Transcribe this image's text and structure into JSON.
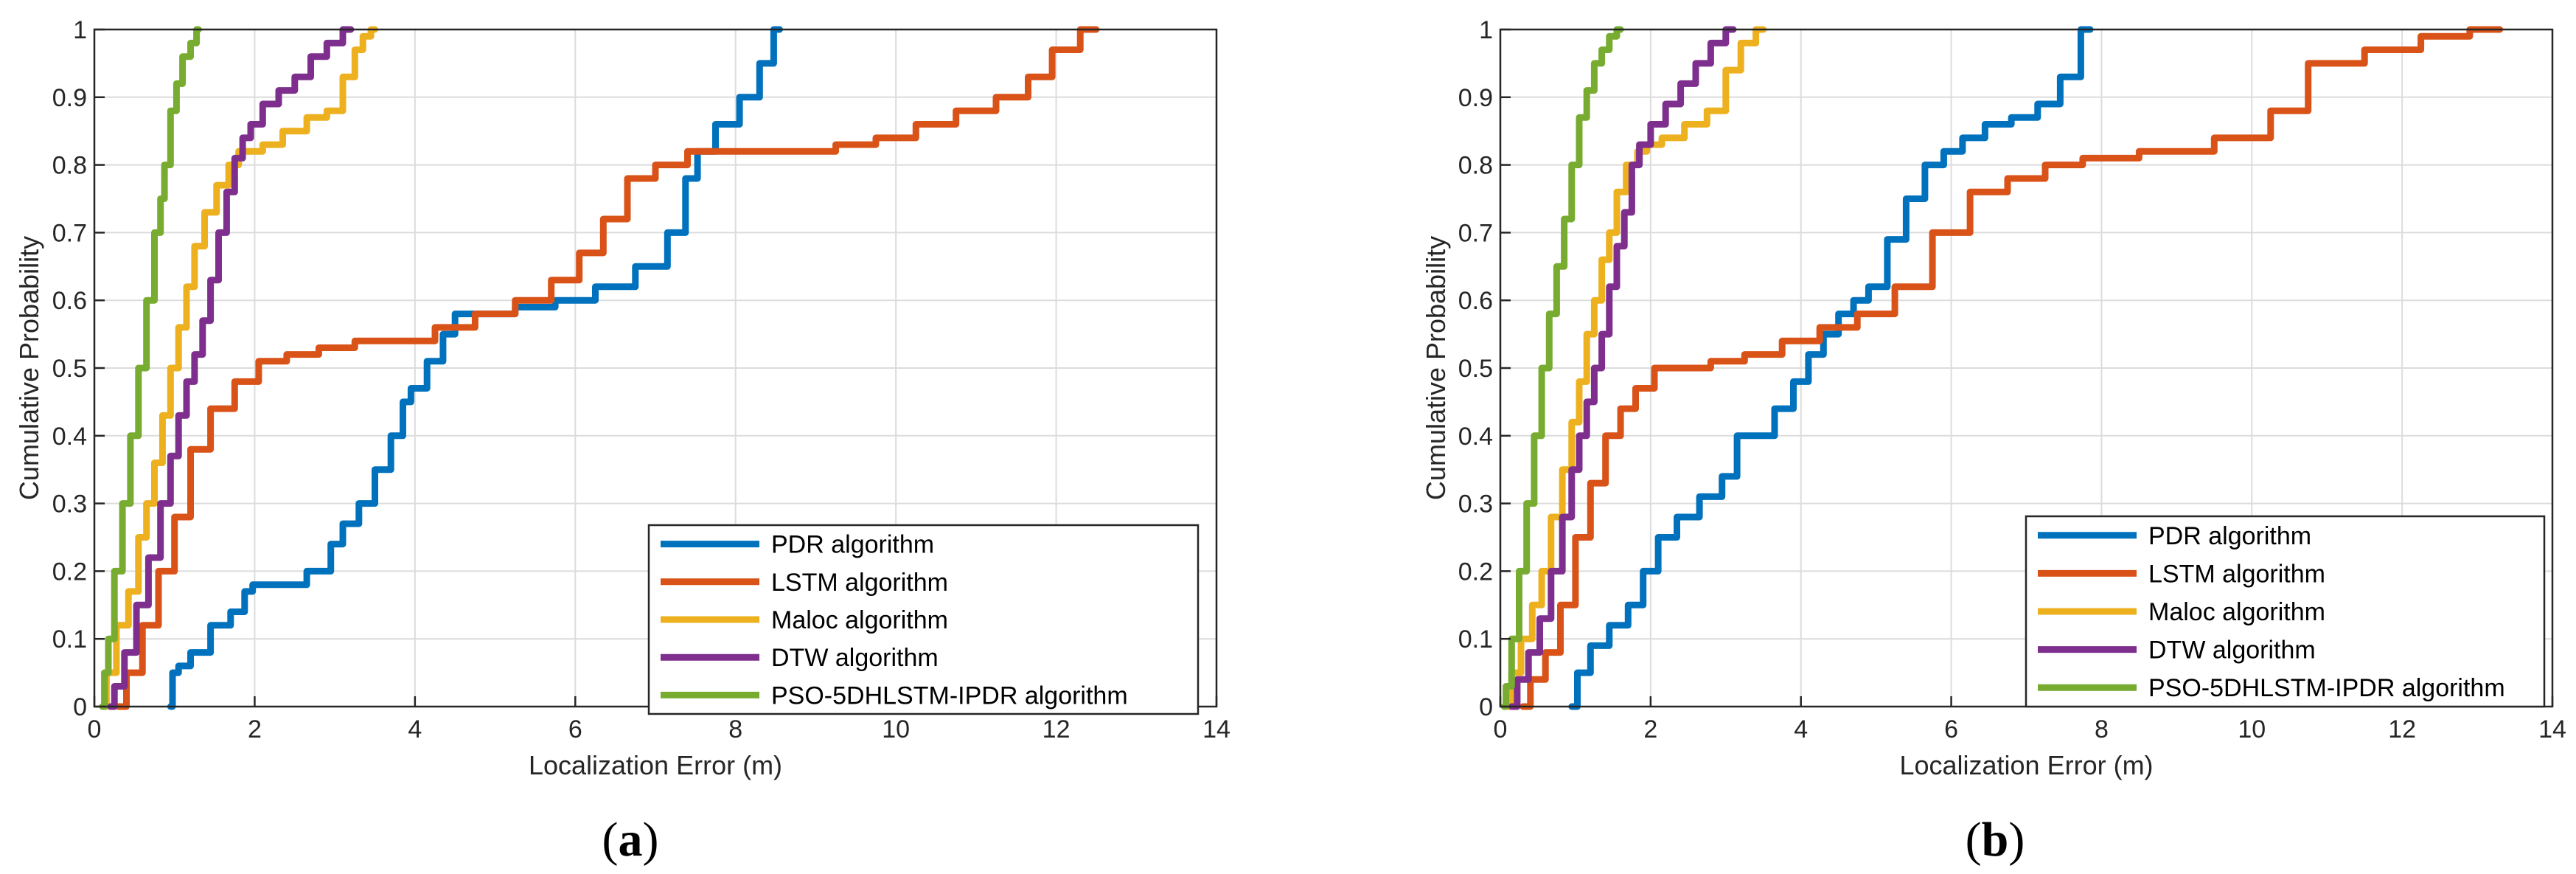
{
  "colors": {
    "pdr": "#0072BD",
    "lstm": "#D95319",
    "maloc": "#EDB120",
    "dtw": "#7E2F8E",
    "pso": "#77AC30"
  },
  "chart_data": [
    {
      "type": "line",
      "caption": "a",
      "xlabel": "Localization Error (m)",
      "ylabel": "Cumulative Probability",
      "xlim": [
        0,
        14
      ],
      "ylim": [
        0,
        1
      ],
      "xticks": [
        "0",
        "2",
        "4",
        "6",
        "8",
        "10",
        "12",
        "14"
      ],
      "yticks": [
        "0",
        "0.1",
        "0.2",
        "0.3",
        "0.4",
        "0.5",
        "0.6",
        "0.7",
        "0.8",
        "0.9",
        "1"
      ],
      "grid": true,
      "legend_position": "bottom-right",
      "series": [
        {
          "key": "pdr",
          "name": "PDR algorithm",
          "x": [
            0.95,
            1.0,
            1.1,
            1.3,
            1.6,
            1.8,
            1.95,
            2.0,
            2.4,
            2.9,
            3.0,
            3.2,
            3.4,
            3.6,
            3.8,
            3.9,
            4.0,
            4.3,
            4.4,
            4.6,
            5.0,
            5.5,
            6.0,
            6.5,
            7.0,
            7.3,
            7.45,
            7.6,
            7.9,
            8.2,
            8.4,
            8.55
          ],
          "y": [
            0,
            0.05,
            0.06,
            0.08,
            0.12,
            0.14,
            0.17,
            0.18,
            0.18,
            0.2,
            0.24,
            0.27,
            0.3,
            0.35,
            0.4,
            0.45,
            0.47,
            0.51,
            0.55,
            0.58,
            0.58,
            0.59,
            0.6,
            0.62,
            0.65,
            0.7,
            0.78,
            0.82,
            0.86,
            0.9,
            0.95,
            1.0
          ]
        },
        {
          "key": "lstm",
          "name": "LSTM algorithm",
          "x": [
            0.3,
            0.5,
            0.7,
            0.9,
            1.1,
            1.3,
            1.6,
            1.9,
            2.2,
            2.6,
            3.0,
            3.5,
            4.0,
            4.5,
            5.0,
            5.5,
            5.9,
            6.2,
            6.5,
            6.8,
            7.2,
            7.6,
            8.0,
            8.5,
            9.0,
            9.5,
            10.0,
            10.5,
            11.0,
            11.5,
            11.8,
            12.1,
            12.5
          ],
          "y": [
            0,
            0.05,
            0.12,
            0.2,
            0.28,
            0.38,
            0.44,
            0.48,
            0.51,
            0.52,
            0.53,
            0.54,
            0.54,
            0.56,
            0.58,
            0.6,
            0.63,
            0.67,
            0.72,
            0.78,
            0.8,
            0.82,
            0.82,
            0.82,
            0.82,
            0.83,
            0.84,
            0.86,
            0.88,
            0.9,
            0.93,
            0.97,
            1.0
          ]
        },
        {
          "key": "maloc",
          "name": "Maloc algorithm",
          "x": [
            0.1,
            0.2,
            0.35,
            0.5,
            0.6,
            0.7,
            0.8,
            0.9,
            1.0,
            1.1,
            1.2,
            1.3,
            1.45,
            1.6,
            1.75,
            1.85,
            2.0,
            2.2,
            2.5,
            2.8,
            3.0,
            3.2,
            3.3,
            3.4,
            3.5
          ],
          "y": [
            0,
            0.05,
            0.12,
            0.17,
            0.25,
            0.3,
            0.36,
            0.43,
            0.5,
            0.56,
            0.62,
            0.68,
            0.73,
            0.77,
            0.8,
            0.82,
            0.82,
            0.83,
            0.85,
            0.87,
            0.88,
            0.93,
            0.97,
            0.99,
            1.0
          ]
        },
        {
          "key": "dtw",
          "name": "DTW algorithm",
          "x": [
            0.2,
            0.3,
            0.45,
            0.6,
            0.75,
            0.9,
            1.0,
            1.1,
            1.2,
            1.3,
            1.4,
            1.5,
            1.6,
            1.7,
            1.8,
            1.9,
            2.0,
            2.2,
            2.4,
            2.6,
            2.8,
            3.0,
            3.2
          ],
          "y": [
            0,
            0.03,
            0.08,
            0.15,
            0.22,
            0.3,
            0.37,
            0.43,
            0.48,
            0.52,
            0.57,
            0.63,
            0.7,
            0.76,
            0.81,
            0.84,
            0.86,
            0.89,
            0.91,
            0.93,
            0.96,
            0.98,
            1.0
          ]
        },
        {
          "key": "pso",
          "name": "PSO-5DHLSTM-IPDR algorithm",
          "x": [
            0.1,
            0.15,
            0.2,
            0.3,
            0.4,
            0.5,
            0.6,
            0.7,
            0.8,
            0.85,
            0.9,
            1.0,
            1.05,
            1.15,
            1.25,
            1.3
          ],
          "y": [
            0,
            0.05,
            0.1,
            0.2,
            0.3,
            0.4,
            0.5,
            0.6,
            0.7,
            0.75,
            0.8,
            0.88,
            0.92,
            0.96,
            0.98,
            1.0
          ]
        }
      ]
    },
    {
      "type": "line",
      "caption": "b",
      "xlabel": "Localization Error (m)",
      "ylabel": "Cumulative Probability",
      "xlim": [
        0,
        14
      ],
      "ylim": [
        0,
        1
      ],
      "xticks": [
        "0",
        "2",
        "4",
        "6",
        "8",
        "10",
        "12",
        "14"
      ],
      "yticks": [
        "0",
        "0.1",
        "0.2",
        "0.3",
        "0.4",
        "0.5",
        "0.6",
        "0.7",
        "0.8",
        "0.9",
        "1"
      ],
      "grid": true,
      "legend_position": "bottom-right",
      "series": [
        {
          "key": "pdr",
          "name": "PDR algorithm",
          "x": [
            0.95,
            1.1,
            1.3,
            1.6,
            1.8,
            2.0,
            2.2,
            2.5,
            2.8,
            3.1,
            3.2,
            3.5,
            3.8,
            4.0,
            4.2,
            4.4,
            4.6,
            4.8,
            5.0,
            5.3,
            5.5,
            5.8,
            6.0,
            6.3,
            6.6,
            7.0,
            7.3,
            7.6,
            7.85
          ],
          "y": [
            0,
            0.05,
            0.09,
            0.12,
            0.15,
            0.2,
            0.25,
            0.28,
            0.31,
            0.34,
            0.4,
            0.4,
            0.44,
            0.48,
            0.52,
            0.55,
            0.58,
            0.6,
            0.62,
            0.69,
            0.75,
            0.8,
            0.82,
            0.84,
            0.86,
            0.87,
            0.89,
            0.93,
            1.0
          ]
        },
        {
          "key": "lstm",
          "name": "LSTM algorithm",
          "x": [
            0.3,
            0.5,
            0.7,
            0.9,
            1.1,
            1.3,
            1.5,
            1.7,
            1.9,
            2.2,
            2.6,
            3.0,
            3.5,
            4.0,
            4.5,
            5.0,
            5.5,
            6.0,
            6.5,
            7.0,
            7.5,
            8.0,
            9.0,
            10.0,
            10.5,
            11.0,
            12.0,
            12.5,
            13.3
          ],
          "y": [
            0,
            0.04,
            0.08,
            0.15,
            0.25,
            0.33,
            0.4,
            0.44,
            0.47,
            0.5,
            0.5,
            0.51,
            0.52,
            0.54,
            0.56,
            0.58,
            0.62,
            0.7,
            0.76,
            0.78,
            0.8,
            0.81,
            0.82,
            0.84,
            0.88,
            0.95,
            0.97,
            0.99,
            1.0
          ]
        },
        {
          "key": "maloc",
          "name": "Maloc algorithm",
          "x": [
            0.1,
            0.2,
            0.35,
            0.5,
            0.6,
            0.75,
            0.9,
            1.0,
            1.1,
            1.2,
            1.3,
            1.4,
            1.5,
            1.6,
            1.75,
            1.9,
            2.0,
            2.3,
            2.6,
            2.9,
            3.1,
            3.3,
            3.5
          ],
          "y": [
            0,
            0.05,
            0.1,
            0.15,
            0.2,
            0.28,
            0.35,
            0.42,
            0.48,
            0.55,
            0.6,
            0.66,
            0.7,
            0.76,
            0.8,
            0.82,
            0.83,
            0.84,
            0.86,
            0.88,
            0.94,
            0.98,
            1.0
          ]
        },
        {
          "key": "dtw",
          "name": "DTW algorithm",
          "x": [
            0.15,
            0.3,
            0.45,
            0.6,
            0.75,
            0.9,
            1.0,
            1.1,
            1.2,
            1.3,
            1.4,
            1.5,
            1.6,
            1.7,
            1.8,
            1.9,
            2.1,
            2.3,
            2.5,
            2.7,
            2.9,
            3.1
          ],
          "y": [
            0,
            0.04,
            0.08,
            0.13,
            0.2,
            0.28,
            0.35,
            0.4,
            0.45,
            0.5,
            0.55,
            0.62,
            0.68,
            0.73,
            0.8,
            0.83,
            0.86,
            0.89,
            0.92,
            0.95,
            0.98,
            1.0
          ]
        },
        {
          "key": "pso",
          "name": "PSO-5DHLSTM-IPDR algorithm",
          "x": [
            0.05,
            0.1,
            0.2,
            0.3,
            0.4,
            0.5,
            0.6,
            0.7,
            0.8,
            0.9,
            1.0,
            1.1,
            1.2,
            1.3,
            1.4,
            1.5,
            1.6
          ],
          "y": [
            0,
            0.03,
            0.1,
            0.2,
            0.3,
            0.4,
            0.5,
            0.58,
            0.65,
            0.72,
            0.8,
            0.87,
            0.91,
            0.95,
            0.97,
            0.99,
            1.0
          ]
        }
      ]
    }
  ]
}
